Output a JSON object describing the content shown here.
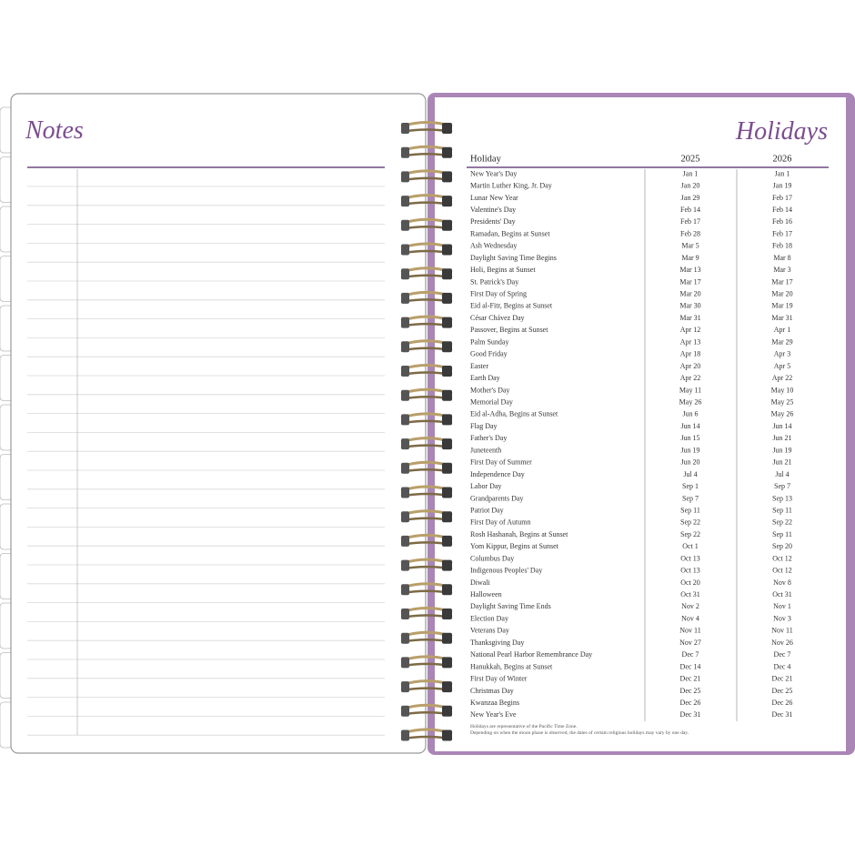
{
  "left_page": {
    "title": "Notes"
  },
  "right_page": {
    "title": "Holidays",
    "table": {
      "header": [
        "Holiday",
        "2025",
        "2026"
      ],
      "rows": [
        [
          "New Year's Day",
          "Jan 1",
          "Jan 1"
        ],
        [
          "Martin Luther King, Jr. Day",
          "Jan 20",
          "Jan 19"
        ],
        [
          "Lunar New Year",
          "Jan 29",
          "Feb 17"
        ],
        [
          "Valentine's Day",
          "Feb 14",
          "Feb 14"
        ],
        [
          "Presidents' Day",
          "Feb 17",
          "Feb 16"
        ],
        [
          "Ramadan, Begins at Sunset",
          "Feb 28",
          "Feb 17"
        ],
        [
          "Ash Wednesday",
          "Mar 5",
          "Feb 18"
        ],
        [
          "Daylight Saving Time Begins",
          "Mar 9",
          "Mar 8"
        ],
        [
          "Holi, Begins at Sunset",
          "Mar 13",
          "Mar 3"
        ],
        [
          "St. Patrick's Day",
          "Mar 17",
          "Mar 17"
        ],
        [
          "First Day of Spring",
          "Mar 20",
          "Mar 20"
        ],
        [
          "Eid al-Fitr, Begins at Sunset",
          "Mar 30",
          "Mar 19"
        ],
        [
          "César Chávez Day",
          "Mar 31",
          "Mar 31"
        ],
        [
          "Passover, Begins at Sunset",
          "Apr 12",
          "Apr 1"
        ],
        [
          "Palm Sunday",
          "Apr 13",
          "Mar 29"
        ],
        [
          "Good Friday",
          "Apr 18",
          "Apr 3"
        ],
        [
          "Easter",
          "Apr 20",
          "Apr 5"
        ],
        [
          "Earth Day",
          "Apr 22",
          "Apr 22"
        ],
        [
          "Mother's Day",
          "May 11",
          "May 10"
        ],
        [
          "Memorial Day",
          "May 26",
          "May 25"
        ],
        [
          "Eid al-Adha, Begins at Sunset",
          "Jun 6",
          "May 26"
        ],
        [
          "Flag Day",
          "Jun 14",
          "Jun 14"
        ],
        [
          "Father's Day",
          "Jun 15",
          "Jun 21"
        ],
        [
          "Juneteenth",
          "Jun 19",
          "Jun 19"
        ],
        [
          "First Day of Summer",
          "Jun 20",
          "Jun 21"
        ],
        [
          "Independence Day",
          "Jul 4",
          "Jul 4"
        ],
        [
          "Labor Day",
          "Sep 1",
          "Sep 7"
        ],
        [
          "Grandparents Day",
          "Sep 7",
          "Sep 13"
        ],
        [
          "Patriot Day",
          "Sep 11",
          "Sep 11"
        ],
        [
          "First Day of Autumn",
          "Sep 22",
          "Sep 22"
        ],
        [
          "Rosh Hashanah, Begins at Sunset",
          "Sep 22",
          "Sep 11"
        ],
        [
          "Yom Kippur, Begins at Sunset",
          "Oct 1",
          "Sep 20"
        ],
        [
          "Columbus Day",
          "Oct 13",
          "Oct 12"
        ],
        [
          "Indigenous Peoples' Day",
          "Oct 13",
          "Oct 12"
        ],
        [
          "Diwali",
          "Oct 20",
          "Nov 8"
        ],
        [
          "Halloween",
          "Oct 31",
          "Oct 31"
        ],
        [
          "Daylight Saving Time Ends",
          "Nov 2",
          "Nov 1"
        ],
        [
          "Election Day",
          "Nov 4",
          "Nov 3"
        ],
        [
          "Veterans Day",
          "Nov 11",
          "Nov 11"
        ],
        [
          "Thanksgiving Day",
          "Nov 27",
          "Nov 26"
        ],
        [
          "National Pearl Harbor Remembrance Day",
          "Dec 7",
          "Dec 7"
        ],
        [
          "Hanukkah, Begins at Sunset",
          "Dec 14",
          "Dec 4"
        ],
        [
          "First Day of Winter",
          "Dec 21",
          "Dec 21"
        ],
        [
          "Christmas Day",
          "Dec 25",
          "Dec 25"
        ],
        [
          "Kwanzaa Begins",
          "Dec 26",
          "Dec 26"
        ],
        [
          "New Year's Eve",
          "Dec 31",
          "Dec 31"
        ]
      ]
    },
    "footnotes": [
      "Holidays are representative of the Pacific Time Zone.",
      "Depending on when the moon phase is observed, the dates of certain religious holidays may vary by one day."
    ]
  }
}
